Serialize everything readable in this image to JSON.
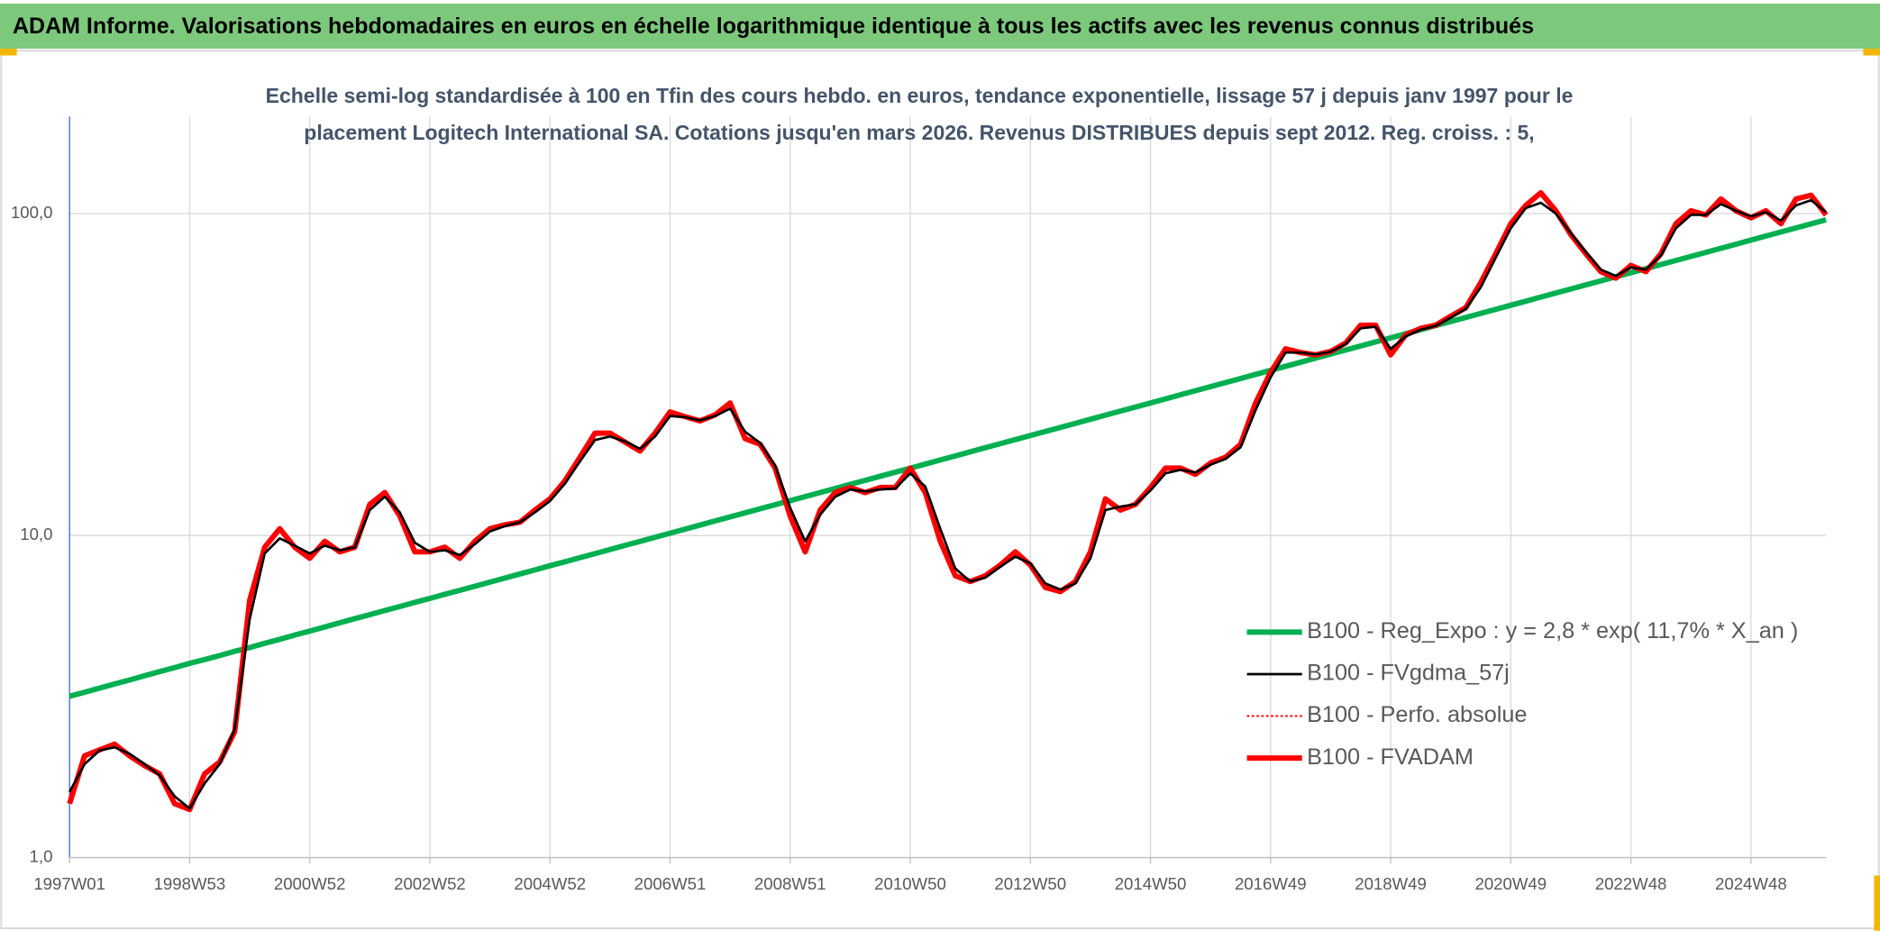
{
  "chart_data": {
    "type": "line",
    "title": "ADAM Informe. Valorisations hebdomadaires en euros en échelle logarithmique identique à tous les actifs avec les revenus connus distribués",
    "subtitle": "Echelle semi-log standardisée à 100 en Tfin des cours hebdo. en euros, tendance exponentielle, lissage 57 j depuis janv 1997 pour le placement Logitech International SA. Cotations jusqu'en mars 2026. Revenus DISTRIBUES depuis sept 2012. Reg. croiss. : 5,",
    "log_scale": true,
    "grid": true,
    "legend": "lower right",
    "ylim": [
      1,
      200
    ],
    "yticks": [
      {
        "value": 1,
        "label": "1,0"
      },
      {
        "value": 10,
        "label": "10,0"
      },
      {
        "value": 100,
        "label": "100,0"
      }
    ],
    "categories": [
      "1997W01",
      null,
      null,
      null,
      null,
      null,
      null,
      null,
      "1998W53",
      null,
      null,
      null,
      null,
      null,
      null,
      null,
      "2000W52",
      null,
      null,
      null,
      null,
      null,
      null,
      null,
      "2002W52",
      null,
      null,
      null,
      null,
      null,
      null,
      null,
      "2004W52",
      null,
      null,
      null,
      null,
      null,
      null,
      null,
      "2006W51",
      null,
      null,
      null,
      null,
      null,
      null,
      null,
      "2008W51",
      null,
      null,
      null,
      null,
      null,
      null,
      null,
      "2010W50",
      null,
      null,
      null,
      null,
      null,
      null,
      null,
      "2012W50",
      null,
      null,
      null,
      null,
      null,
      null,
      null,
      "2014W50",
      null,
      null,
      null,
      null,
      null,
      null,
      null,
      "2016W49",
      null,
      null,
      null,
      null,
      null,
      null,
      null,
      "2018W49",
      null,
      null,
      null,
      null,
      null,
      null,
      null,
      "2020W49",
      null,
      null,
      null,
      null,
      null,
      null,
      null,
      "2022W48",
      null,
      null,
      null,
      null,
      null,
      null,
      null,
      "2024W48",
      null,
      null,
      null,
      null,
      null
    ],
    "series": [
      {
        "name": "B100 - Reg_Expo : y = 2,8 * exp( 11,7% *  X_an )",
        "color": "#00b050",
        "style": "thick",
        "values": [
          3.17,
          3.26,
          3.36,
          3.46,
          3.56,
          3.67,
          3.78,
          3.89,
          4.01,
          4.12,
          4.24,
          4.37,
          4.49,
          4.63,
          4.76,
          4.91,
          5.05,
          5.2,
          5.36,
          5.52,
          5.68,
          5.85,
          6.02,
          6.2,
          6.38,
          6.57,
          6.76,
          6.96,
          7.17,
          7.38,
          7.6,
          7.82,
          8.06,
          8.29,
          8.54,
          8.79,
          9.05,
          9.32,
          9.59,
          9.88,
          10.17,
          10.47,
          10.78,
          11.1,
          11.43,
          11.76,
          12.11,
          12.47,
          12.83,
          13.21,
          13.6,
          14.0,
          14.42,
          14.84,
          15.28,
          15.73,
          16.19,
          16.67,
          17.17,
          17.67,
          18.2,
          18.74,
          19.29,
          19.86,
          20.45,
          21.05,
          21.67,
          22.31,
          22.97,
          23.65,
          24.35,
          25.07,
          25.81,
          26.57,
          27.36,
          28.17,
          29.0,
          29.86,
          30.74,
          31.65,
          32.58,
          33.54,
          34.53,
          35.55,
          36.6,
          37.68,
          38.79,
          39.94,
          41.12,
          42.33,
          43.58,
          44.87,
          46.19,
          47.56,
          48.96,
          50.41,
          51.9,
          53.43,
          55.01,
          56.64,
          58.31,
          60.03,
          61.81,
          63.63,
          65.51,
          67.44,
          69.43,
          71.49,
          73.6,
          75.77,
          78.01,
          80.31,
          82.69,
          85.13,
          87.64,
          90.22,
          92.89,
          95.6
        ]
      },
      {
        "name": "B100 - FVgdma_57j",
        "color": "#000000",
        "style": "thin",
        "values": [
          1.6,
          1.95,
          2.15,
          2.2,
          2.1,
          1.95,
          1.8,
          1.55,
          1.42,
          1.7,
          1.95,
          2.5,
          5.5,
          8.8,
          9.8,
          9.3,
          8.8,
          9.3,
          9.0,
          9.2,
          12.0,
          13.2,
          11.8,
          9.5,
          8.9,
          9.0,
          8.7,
          9.4,
          10.3,
          10.7,
          11.0,
          11.8,
          12.8,
          14.5,
          17.0,
          19.8,
          20.3,
          19.6,
          18.6,
          20.3,
          23.5,
          23.3,
          22.8,
          23.5,
          24.8,
          21.0,
          19.4,
          16.5,
          12.2,
          9.6,
          11.6,
          13.2,
          13.9,
          13.7,
          13.9,
          14.0,
          15.6,
          14.2,
          10.5,
          7.9,
          7.2,
          7.4,
          8.0,
          8.6,
          8.2,
          7.1,
          6.8,
          7.1,
          8.5,
          12.0,
          12.3,
          12.5,
          13.8,
          15.6,
          16.0,
          15.7,
          16.6,
          17.3,
          18.8,
          24.5,
          31.0,
          37.0,
          37.0,
          36.5,
          37.2,
          39.3,
          44.0,
          44.5,
          38.0,
          41.5,
          43.6,
          44.8,
          47.5,
          50.5,
          59.0,
          73.0,
          90.0,
          104,
          108,
          100,
          87,
          76,
          67,
          64,
          68,
          67,
          74,
          90,
          99,
          99,
          107,
          102,
          98,
          101,
          95,
          106,
          110,
          101
        ]
      },
      {
        "name": "B100 - Perfo. absolue",
        "color": "#ff0000",
        "style": "dotted",
        "values": [
          1.47,
          2.07,
          2.16,
          2.25,
          2.07,
          1.93,
          1.82,
          1.47,
          1.41,
          1.82,
          1.98,
          2.46,
          6.3,
          9.2,
          10.5,
          9.2,
          8.5,
          9.6,
          8.9,
          9.2,
          12.5,
          13.6,
          11.5,
          8.9,
          8.9,
          9.2,
          8.5,
          9.6,
          10.5,
          10.8,
          11.0,
          12.0,
          13.0,
          14.8,
          17.5,
          20.8,
          20.8,
          19.5,
          18.3,
          20.8,
          24.2,
          23.4,
          22.7,
          23.7,
          25.8,
          20.0,
          19.2,
          16.2,
          11.5,
          8.9,
          12.0,
          13.6,
          14.1,
          13.6,
          14.1,
          14.1,
          16.2,
          13.6,
          9.6,
          7.5,
          7.2,
          7.5,
          8.1,
          8.9,
          8.1,
          6.9,
          6.7,
          7.2,
          8.9,
          13.0,
          12.0,
          12.5,
          14.1,
          16.2,
          16.2,
          15.5,
          16.8,
          17.5,
          19.2,
          25.8,
          32.1,
          38.0,
          37.0,
          36.4,
          37.3,
          39.6,
          45,
          45,
          36.4,
          42,
          44,
          45,
          48,
          51,
          61,
          75,
          93,
          106,
          116,
          102,
          86,
          75,
          66,
          63,
          69,
          66,
          75,
          93,
          102,
          99,
          111,
          102,
          97,
          102,
          93,
          111,
          114,
          99
        ]
      },
      {
        "name": "B100 - FVADAM",
        "color": "#ff0000",
        "style": "thick",
        "values": [
          1.47,
          2.07,
          2.16,
          2.25,
          2.07,
          1.93,
          1.82,
          1.47,
          1.41,
          1.82,
          1.98,
          2.46,
          6.3,
          9.2,
          10.5,
          9.2,
          8.5,
          9.6,
          8.9,
          9.2,
          12.5,
          13.6,
          11.5,
          8.9,
          8.9,
          9.2,
          8.5,
          9.6,
          10.5,
          10.8,
          11.0,
          12.0,
          13.0,
          14.8,
          17.5,
          20.8,
          20.8,
          19.5,
          18.3,
          20.8,
          24.2,
          23.4,
          22.7,
          23.7,
          25.8,
          20.0,
          19.2,
          16.2,
          11.5,
          8.9,
          12.0,
          13.6,
          14.1,
          13.6,
          14.1,
          14.1,
          16.2,
          13.6,
          9.6,
          7.5,
          7.2,
          7.5,
          8.1,
          8.9,
          8.1,
          6.9,
          6.7,
          7.2,
          8.9,
          13.0,
          12.0,
          12.5,
          14.1,
          16.2,
          16.2,
          15.5,
          16.8,
          17.5,
          19.2,
          25.8,
          32.1,
          38.0,
          37.0,
          36.4,
          37.3,
          39.6,
          45,
          45,
          36.4,
          42,
          44,
          45,
          48,
          51,
          61,
          75,
          93,
          106,
          116,
          102,
          86,
          75,
          66,
          63,
          69,
          66,
          75,
          93,
          102,
          99,
          111,
          102,
          97,
          102,
          93,
          111,
          114,
          99
        ]
      }
    ]
  }
}
